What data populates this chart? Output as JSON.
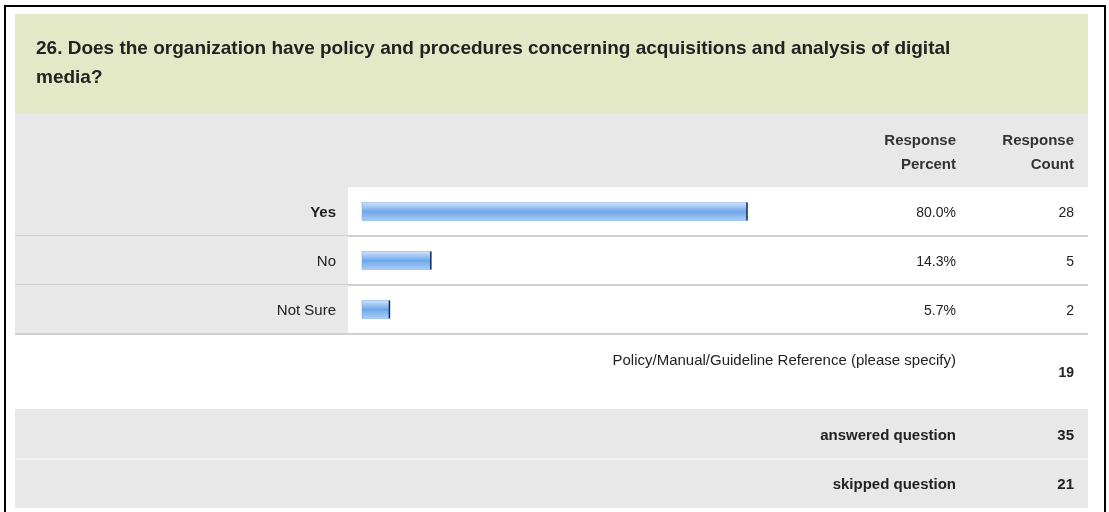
{
  "chart_data": {
    "type": "bar",
    "orientation": "horizontal",
    "title": "26. Does the organization have policy and procedures concerning acquisitions and analysis of digital media?",
    "categories": [
      "Yes",
      "No",
      "Not Sure"
    ],
    "values": [
      80.0,
      14.3,
      5.7
    ],
    "value_labels": [
      "80.0%",
      "14.3%",
      "5.7%"
    ],
    "color": "#6ea8ea",
    "annotations": [
      "Response Percent",
      "Response Count",
      "28",
      "5",
      "2",
      "Policy/Manual/Guideline Reference (please specify)",
      "19",
      "answered question",
      "35",
      "skipped question",
      "21"
    ]
  }
}
